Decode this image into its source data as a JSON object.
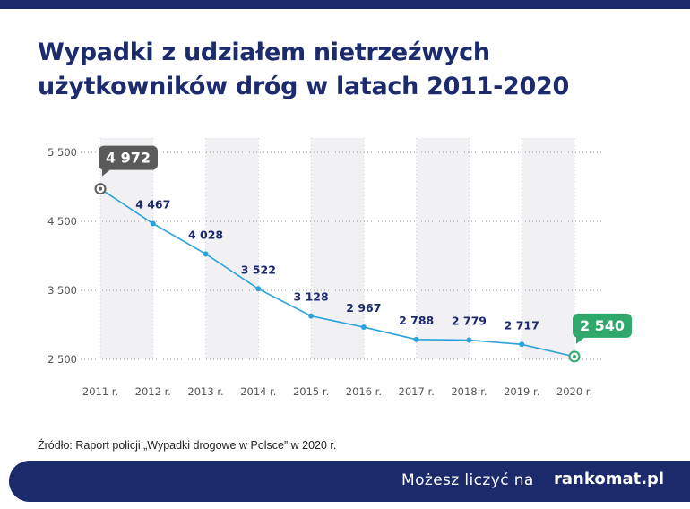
{
  "header": {
    "title_line1": "Wypadki z udziałem nietrzeźwych",
    "title_line2": "użytkowników dróg w latach 2011-2020"
  },
  "chart_data": {
    "type": "line",
    "categories": [
      "2011 r.",
      "2012 r.",
      "2013 r.",
      "2014 r.",
      "2015 r.",
      "2016 r.",
      "2017 r.",
      "2018 r.",
      "2019 r.",
      "2020 r."
    ],
    "values": [
      4972,
      4467,
      4028,
      3522,
      3128,
      2967,
      2788,
      2779,
      2717,
      2540
    ],
    "value_labels": [
      "4 972",
      "4 467",
      "4 028",
      "3 522",
      "3 128",
      "2 967",
      "2 788",
      "2 779",
      "2 717",
      "2 540"
    ],
    "y_ticks": [
      2500,
      3500,
      4500,
      5500
    ],
    "y_tick_labels": [
      "2 500",
      "3 500",
      "4 500",
      "5 500"
    ],
    "ylim": [
      2500,
      5500
    ],
    "grid": true,
    "colors": {
      "line": "#2aa3dc",
      "first_badge": "#5a5a5a",
      "last_badge": "#2ea86b",
      "value_text": "#1c2a6e",
      "axis_text": "#555555"
    }
  },
  "source": "Źródło: Raport policji „Wypadki drogowe w Polsce” w 2020 r.",
  "footer": {
    "tagline": "Możesz liczyć na",
    "logo": "rankomat.pl"
  }
}
